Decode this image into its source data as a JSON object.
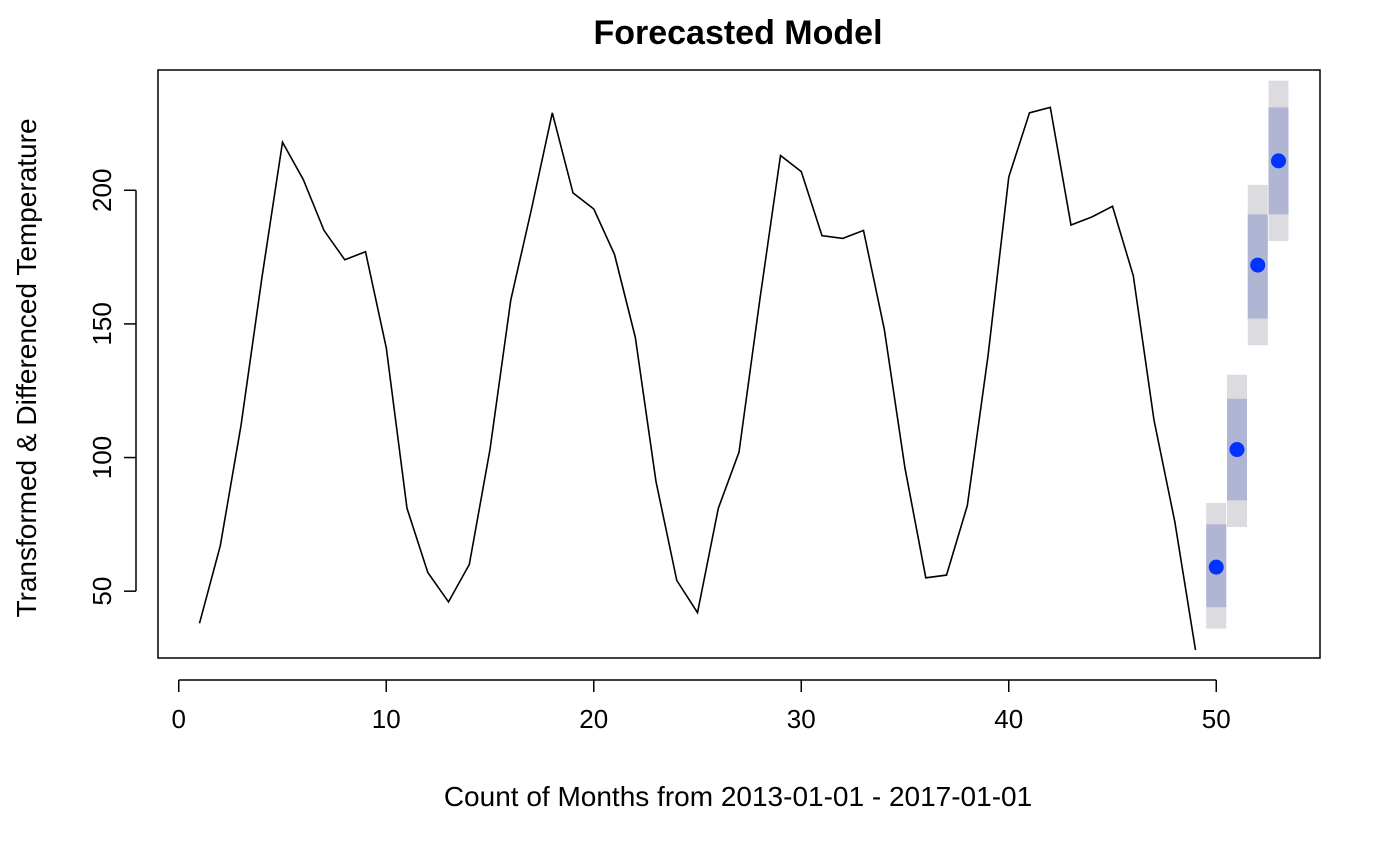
{
  "chart_data": {
    "type": "line",
    "title": "Forecasted Model",
    "xlabel": "Count of Months from 2013-01-01 - 2017-01-01",
    "ylabel": "Transformed & Differenced Temperature",
    "xlim": [
      -1,
      55
    ],
    "ylim": [
      25,
      245
    ],
    "x_ticks": [
      0,
      10,
      20,
      30,
      40,
      50
    ],
    "y_ticks": [
      50,
      100,
      150,
      200
    ],
    "grid": false,
    "series": [
      {
        "x": [
          1,
          2,
          3,
          4,
          5,
          6,
          7,
          8,
          9,
          10,
          11,
          12,
          13,
          14,
          15,
          16,
          17,
          18,
          19,
          20,
          21,
          22,
          23,
          24,
          25,
          26,
          27,
          28,
          29,
          30,
          31,
          32,
          33,
          34,
          35,
          36,
          37,
          38,
          39,
          40,
          41,
          42,
          43,
          44,
          45,
          46,
          47,
          48,
          49
        ],
        "values": [
          38,
          67,
          112,
          167,
          218,
          204,
          185,
          174,
          177,
          141,
          81,
          57,
          46,
          60,
          103,
          159,
          193,
          229,
          199,
          193,
          176,
          145,
          91,
          54,
          42,
          81,
          102,
          159,
          213,
          207,
          183,
          182,
          185,
          148,
          96,
          55,
          56,
          82,
          138,
          205,
          229,
          231,
          187,
          190,
          194,
          168,
          114,
          76,
          28
        ],
        "color": "#000000"
      }
    ],
    "forecast": {
      "x": [
        50,
        51,
        52,
        53
      ],
      "mean": [
        59,
        103,
        172,
        211
      ],
      "lower_80": [
        44,
        84,
        152,
        191
      ],
      "upper_80": [
        75,
        122,
        191,
        231
      ],
      "lower_95": [
        36,
        74,
        142,
        181
      ],
      "upper_95": [
        83,
        131,
        202,
        241
      ],
      "point_color": "#0033ff",
      "band_80_color": "#b0b5d3",
      "band_95_color": "#dcdce0"
    }
  }
}
